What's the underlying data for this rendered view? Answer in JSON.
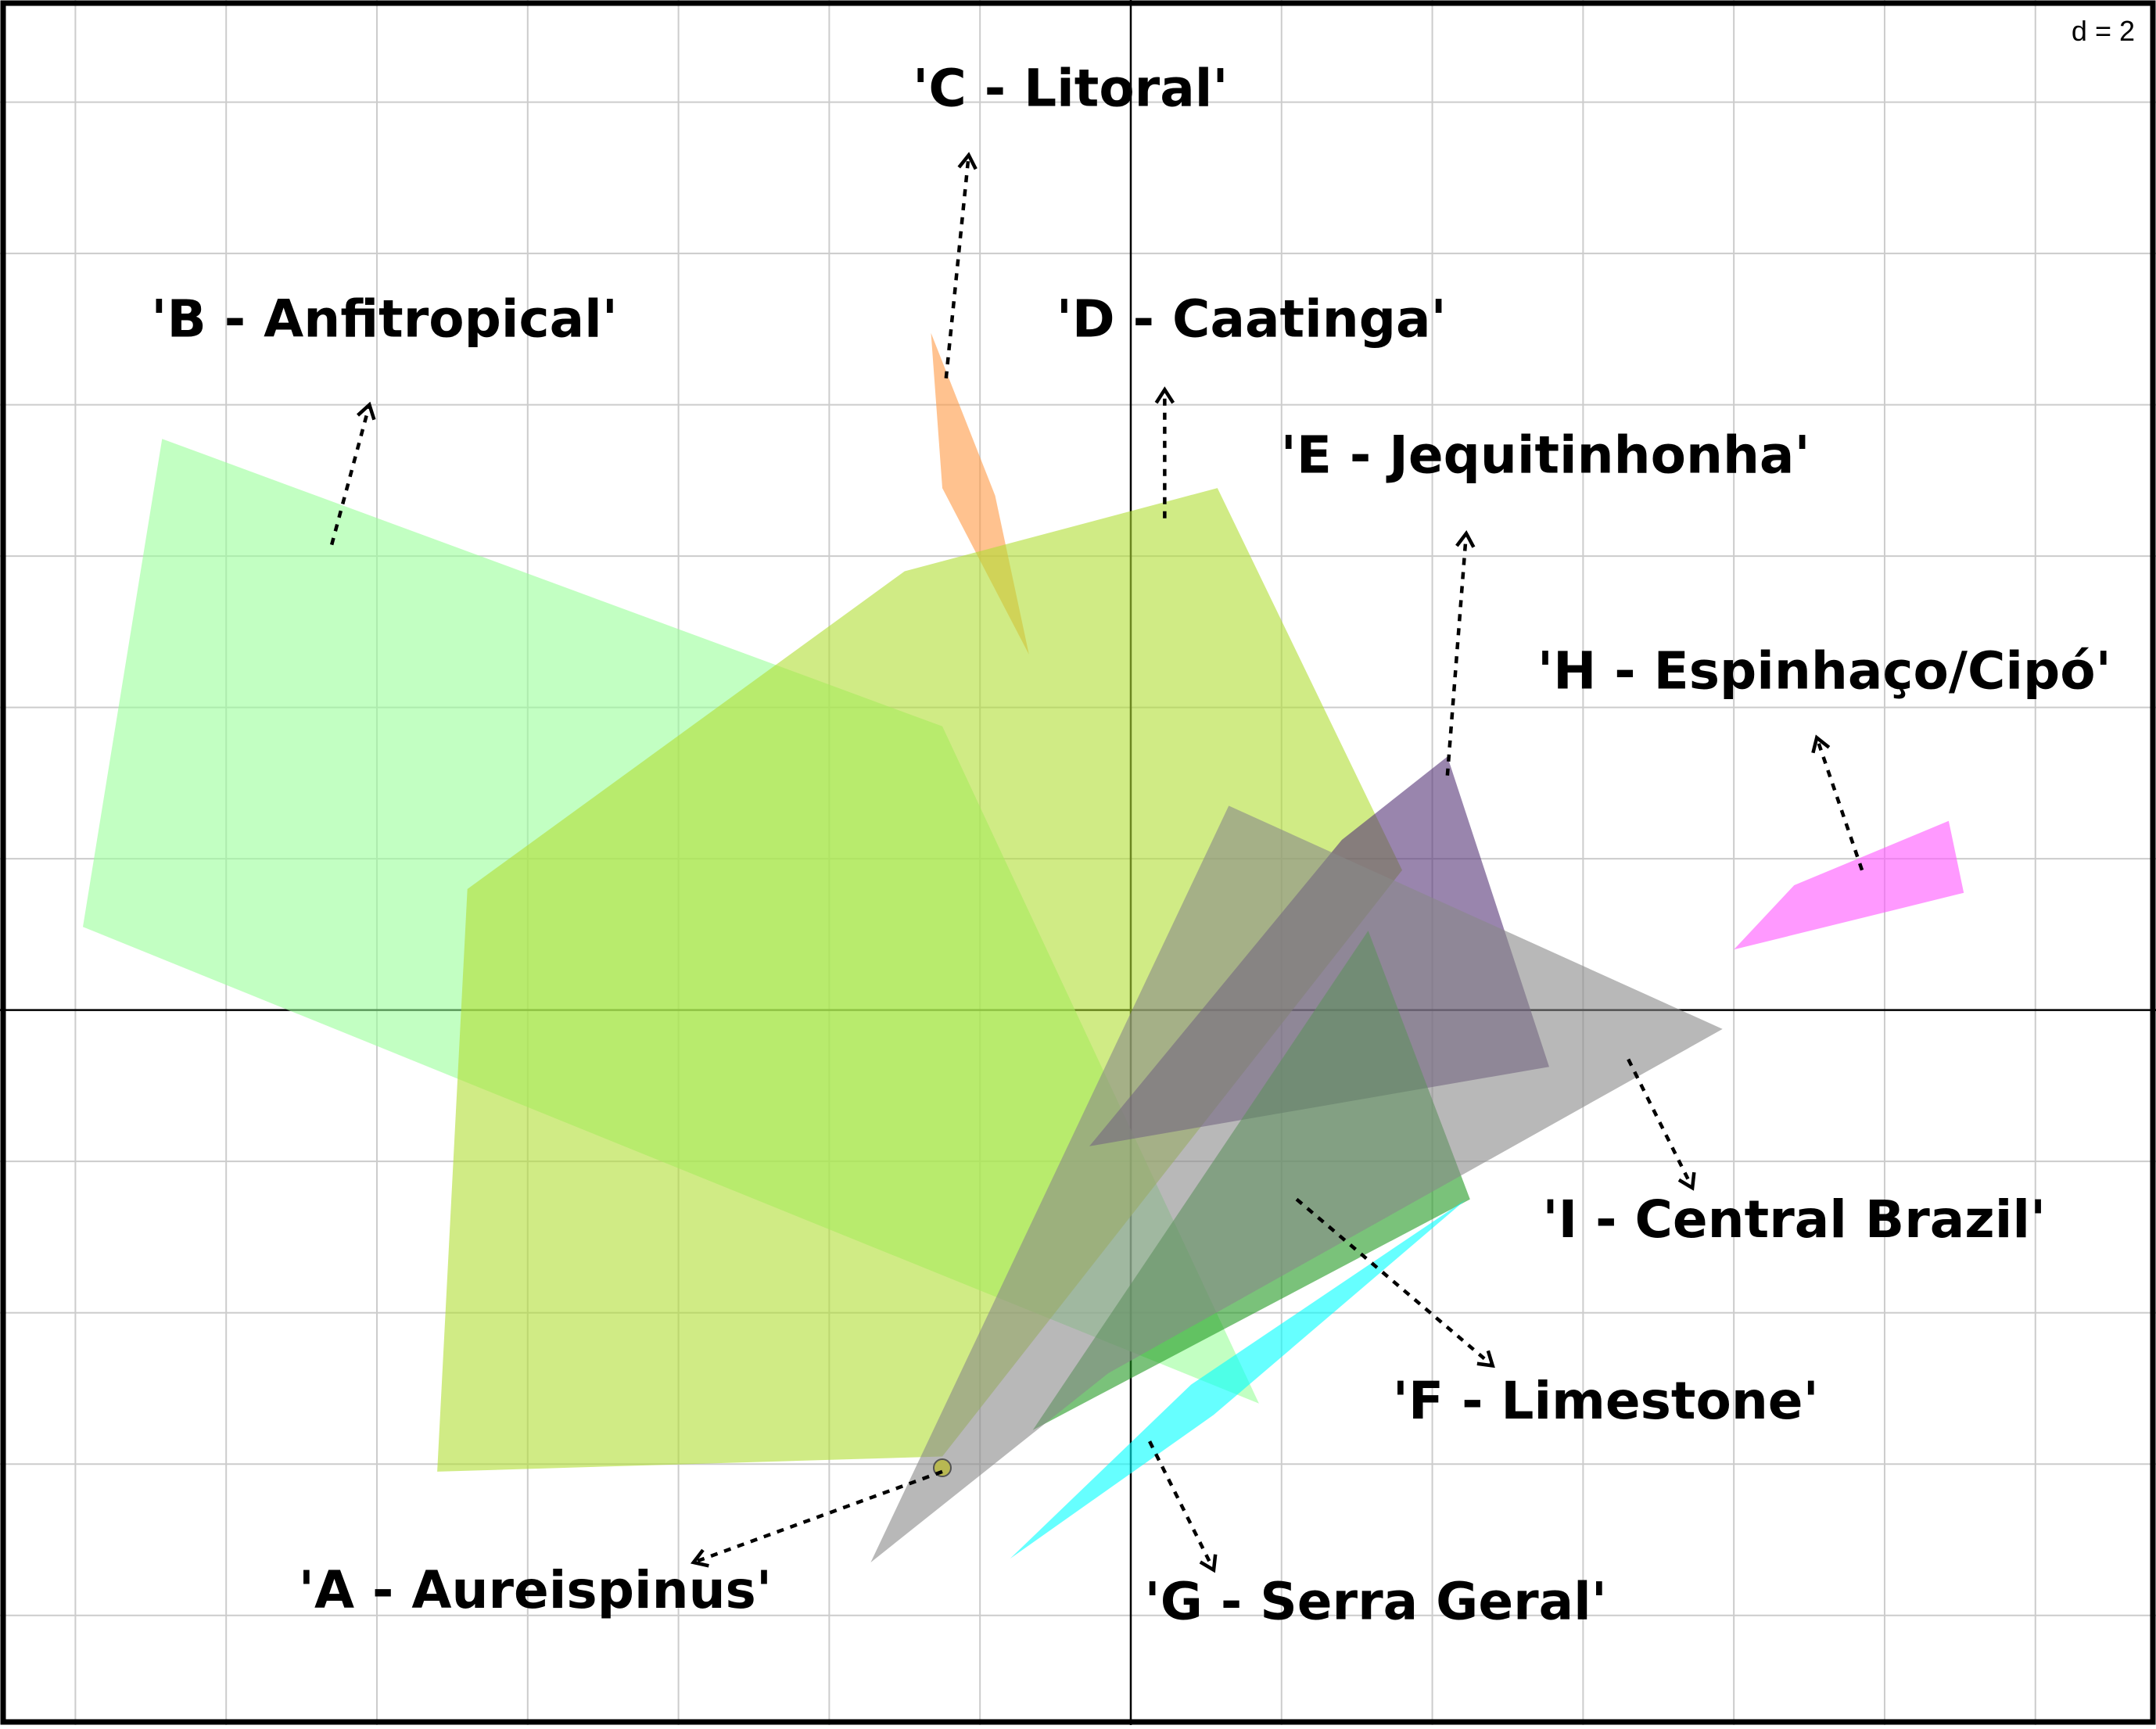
{
  "chart_data": {
    "type": "scatter",
    "title": "",
    "xlabel": "",
    "ylabel": "",
    "scale_label": "d = 2",
    "grid_step": 2,
    "xlim": [
      -15,
      13.6
    ],
    "ylim": [
      -9.45,
      13.35
    ],
    "grid": true,
    "origin_axes": true,
    "groups": [
      {
        "label": "'A - Aureispinus'",
        "color": "#FFFF00",
        "hull": [
          [
            -2.5,
            -6.05
          ]
        ],
        "arrow_from": [
          -2.5,
          -6.1
        ],
        "arrow_to": [
          -5.8,
          -7.3
        ],
        "label_at": [
          -7.9,
          -7.9
        ]
      },
      {
        "label": "'B - Anfitropical'",
        "color": "#99FF99",
        "hull": [
          [
            -12.85,
            7.55
          ],
          [
            -2.5,
            3.75
          ],
          [
            1.7,
            -5.2
          ],
          [
            -13.9,
            1.1
          ]
        ],
        "arrow_from": [
          -10.6,
          6.15
        ],
        "arrow_to": [
          -10.1,
          8.0
        ],
        "label_at": [
          -9.9,
          8.9
        ]
      },
      {
        "label": "'C - Litoral'",
        "color": "#FF9944",
        "hull": [
          [
            -2.65,
            8.95
          ],
          [
            -1.8,
            6.8
          ],
          [
            -1.35,
            4.7
          ],
          [
            -2.5,
            6.9
          ]
        ],
        "arrow_from": [
          -2.45,
          8.35
        ],
        "arrow_to": [
          -2.15,
          11.3
        ],
        "label_at": [
          -0.8,
          11.95
        ]
      },
      {
        "label": "'D - Caatinga'",
        "color": "#B0DD33",
        "hull": [
          [
            -3.0,
            5.8
          ],
          [
            1.15,
            6.9
          ],
          [
            3.6,
            1.85
          ],
          [
            -2.5,
            -5.9
          ],
          [
            -9.2,
            -6.1
          ],
          [
            -8.8,
            1.6
          ]
        ],
        "arrow_from": [
          0.45,
          6.5
        ],
        "arrow_to": [
          0.45,
          8.2
        ],
        "label_at": [
          1.6,
          8.9
        ]
      },
      {
        "label": "'E - Jequitinhonha'",
        "color": "#553377",
        "hull": [
          [
            4.2,
            3.35
          ],
          [
            5.55,
            -0.75
          ],
          [
            -0.55,
            -1.8
          ],
          [
            2.8,
            2.25
          ]
        ],
        "arrow_from": [
          4.2,
          3.1
        ],
        "arrow_to": [
          4.45,
          6.3
        ],
        "label_at": [
          5.5,
          7.1
        ]
      },
      {
        "label": "'F - Limestone'",
        "color": "#229922",
        "hull": [
          [
            3.15,
            1.05
          ],
          [
            4.5,
            -2.5
          ],
          [
            -1.3,
            -5.55
          ]
        ],
        "arrow_from": [
          2.2,
          -2.5
        ],
        "arrow_to": [
          4.8,
          -4.7
        ],
        "label_at": [
          6.3,
          -5.4
        ]
      },
      {
        "label": "'G - Serra Geral'",
        "color": "#00FFFF",
        "hull": [
          [
            4.45,
            -2.5
          ],
          [
            1.1,
            -5.35
          ],
          [
            -1.6,
            -7.25
          ],
          [
            0.8,
            -4.95
          ]
        ],
        "arrow_from": [
          0.25,
          -5.7
        ],
        "arrow_to": [
          1.1,
          -7.4
        ],
        "label_at": [
          3.25,
          -8.05
        ]
      },
      {
        "label": "'H - Espinhaço/Cipó'",
        "color": "#FF55FF",
        "hull": [
          [
            10.85,
            2.5
          ],
          [
            11.05,
            1.55
          ],
          [
            8.0,
            0.8
          ],
          [
            8.8,
            1.65
          ]
        ],
        "arrow_from": [
          9.7,
          1.85
        ],
        "arrow_to": [
          9.1,
          3.6
        ],
        "label_at": [
          9.2,
          4.25
        ]
      },
      {
        "label": "'I - Central Brazil'",
        "color": "#888888",
        "hull": [
          [
            1.3,
            2.7
          ],
          [
            7.85,
            -0.25
          ],
          [
            -0.3,
            -4.8
          ],
          [
            -3.45,
            -7.3
          ]
        ],
        "arrow_from": [
          6.6,
          -0.65
        ],
        "arrow_to": [
          7.45,
          -2.35
        ],
        "label_at": [
          8.8,
          -3.0
        ]
      }
    ]
  }
}
